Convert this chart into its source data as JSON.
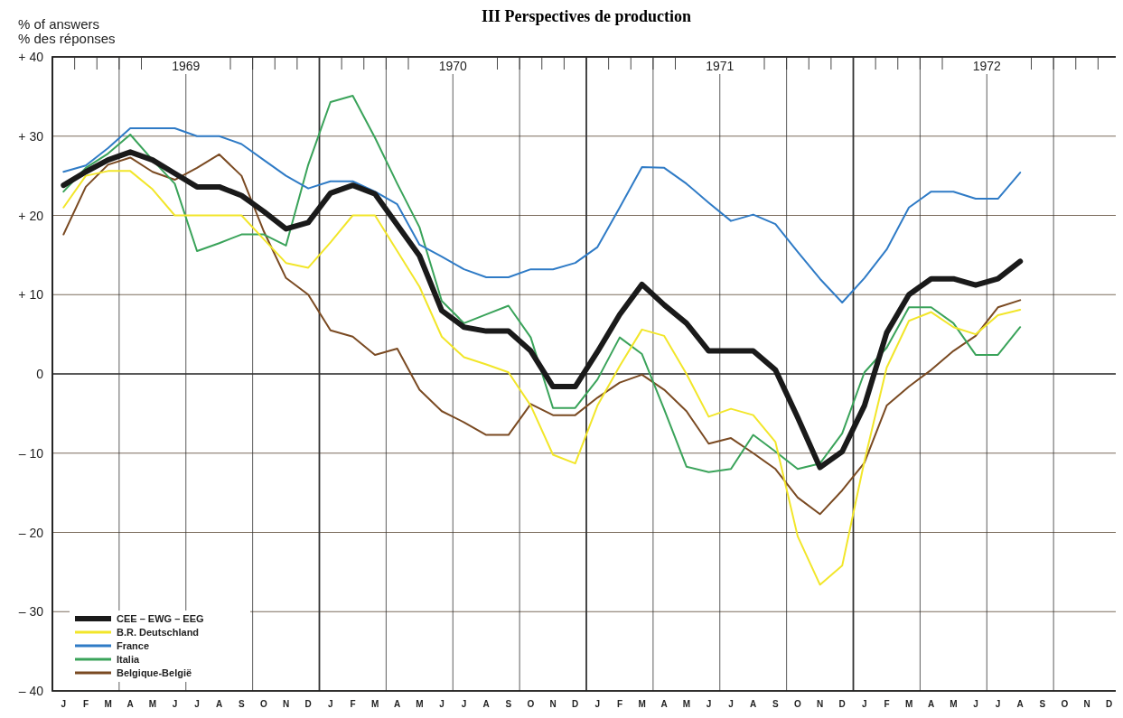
{
  "chart_data": {
    "type": "line",
    "title": "III Perspectives de production",
    "ylabel": "% of answers\n% des réponses",
    "categories": [
      "J",
      "F",
      "M",
      "A",
      "M",
      "J",
      "J",
      "A",
      "S",
      "O",
      "N",
      "D",
      "J",
      "F",
      "M",
      "A",
      "M",
      "J",
      "J",
      "A",
      "S",
      "O",
      "N",
      "D",
      "J",
      "F",
      "M",
      "A",
      "M",
      "J",
      "J",
      "A",
      "S",
      "O",
      "N",
      "D",
      "J",
      "F",
      "M",
      "A",
      "M",
      "J",
      "J",
      "A",
      "S",
      "O",
      "N",
      "D"
    ],
    "annotations": [
      "1969",
      "1970",
      "1971",
      "1972"
    ],
    "ylim": [
      -40,
      40
    ],
    "yticks": [
      {
        "value": 40,
        "label": "+ 40"
      },
      {
        "value": 30,
        "label": "+ 30"
      },
      {
        "value": 20,
        "label": "+ 20"
      },
      {
        "value": 10,
        "label": "+ 10"
      },
      0,
      {
        "value": -10,
        "label": "– 10"
      },
      {
        "value": -20,
        "label": "– 20"
      },
      {
        "value": -30,
        "label": "– 30"
      },
      {
        "value": -40,
        "label": "– 40"
      }
    ],
    "grid": true,
    "legend": "bottom left",
    "marker": "none",
    "line_style": "solid",
    "series": [
      {
        "name": "CEE – EWG – EEG",
        "color": "#1a1a1a",
        "values": [
          23.8,
          25.5,
          27,
          28,
          27,
          25.3,
          23.6,
          23.6,
          22.5,
          20.5,
          18.3,
          19.1,
          22.8,
          23.8,
          22.7,
          18.8,
          14.9,
          8,
          5.9,
          5.4,
          5.4,
          2.9,
          -1.6,
          -1.6,
          2.8,
          7.5,
          11.3,
          8.7,
          6.4,
          2.9,
          2.9,
          2.9,
          0.5,
          -5.5,
          -11.8,
          -9.8,
          -4,
          5.2,
          10,
          12,
          12,
          11.2,
          12,
          14.2,
          null,
          null,
          null,
          null
        ]
      },
      {
        "name": "B.R. Deutschland",
        "color": "#f2e62a",
        "values": [
          21,
          25,
          25.6,
          25.6,
          23.3,
          20,
          20,
          20,
          20,
          17,
          14,
          13.4,
          16.6,
          20,
          20,
          15.5,
          11,
          4.7,
          2.1,
          1.2,
          0.2,
          -4,
          -10.2,
          -11.3,
          -4,
          1,
          5.6,
          4.8,
          0,
          -5.4,
          -4.4,
          -5.2,
          -8.6,
          -20.5,
          -26.6,
          -24.2,
          -11,
          0.8,
          6.7,
          7.8,
          5.9,
          5,
          7.4,
          8.1,
          null,
          null,
          null,
          null
        ]
      },
      {
        "name": "France",
        "color": "#2f7bc6",
        "values": [
          25.5,
          26.3,
          28.5,
          31,
          31,
          31,
          30,
          30,
          29,
          27,
          25,
          23.4,
          24.3,
          24.3,
          23,
          21.4,
          16.3,
          14.8,
          13.2,
          12.2,
          12.2,
          13.2,
          13.2,
          14,
          16,
          21,
          26.1,
          26,
          24,
          21.6,
          19.3,
          20.1,
          18.9,
          15.4,
          12,
          9,
          12.1,
          15.7,
          21,
          23,
          23,
          22.1,
          22.1,
          25.4,
          null,
          null,
          null,
          null
        ]
      },
      {
        "name": "Italia",
        "color": "#3aa35a",
        "values": [
          23,
          26,
          27.8,
          30.2,
          27,
          24,
          15.5,
          16.5,
          17.6,
          17.6,
          16.2,
          26.4,
          34.3,
          35.1,
          29.8,
          24,
          18.5,
          9.2,
          6.4,
          7.5,
          8.6,
          4.6,
          -4.3,
          -4.3,
          -0.7,
          4.6,
          2.5,
          -4.5,
          -11.7,
          -12.4,
          -12,
          -7.7,
          -9.8,
          -12,
          -11.3,
          -7.5,
          0.2,
          3.3,
          8.4,
          8.4,
          6.4,
          2.4,
          2.4,
          5.9,
          null,
          null,
          null,
          null
        ]
      },
      {
        "name": "Belgique-België",
        "color": "#7a4a22",
        "values": [
          17.6,
          23.6,
          26.4,
          27.3,
          25.5,
          24.5,
          26,
          27.7,
          25,
          18,
          12.1,
          10,
          5.5,
          4.7,
          2.4,
          3.2,
          -2,
          -4.7,
          -6.1,
          -7.7,
          -7.7,
          -3.8,
          -5.2,
          -5.2,
          -3,
          -1.1,
          -0.1,
          -2,
          -4.7,
          -8.8,
          -8.1,
          -10,
          -12,
          -15.6,
          -17.7,
          -14.7,
          -11.2,
          -4,
          -1.6,
          0.5,
          2.9,
          4.8,
          8.4,
          9.3,
          null,
          null,
          null,
          null
        ]
      }
    ]
  }
}
